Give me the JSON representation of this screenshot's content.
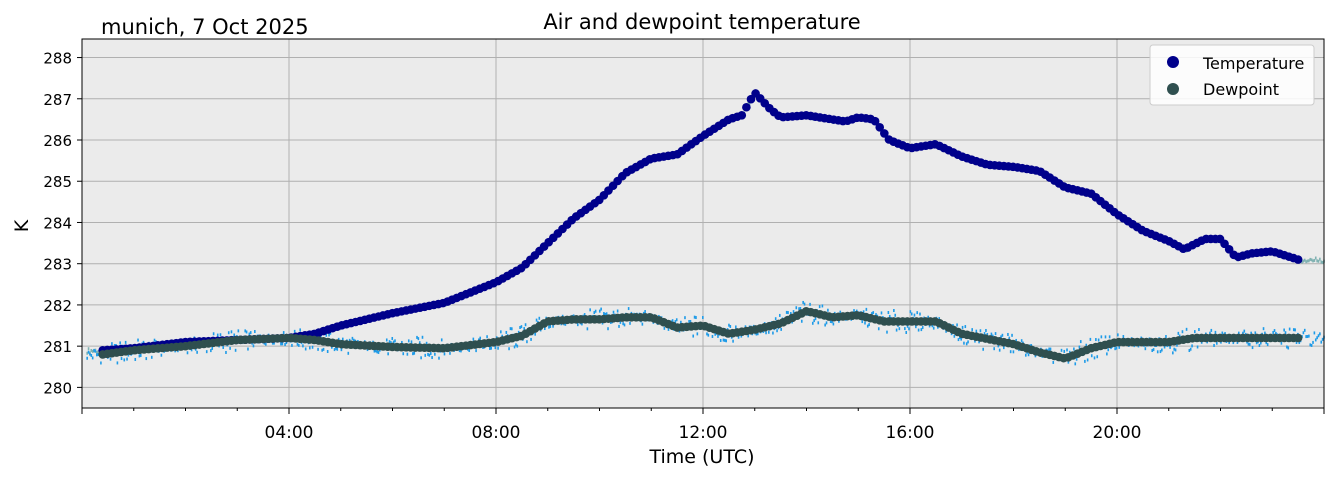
{
  "chart_data": {
    "type": "scatter",
    "title": "Air and dewpoint temperature",
    "subtitle": "munich, 7 Oct 2025",
    "xlabel": "Time (UTC)",
    "ylabel": "K",
    "xlim": [
      0,
      24
    ],
    "ylim": [
      279.5,
      288.45
    ],
    "xticks": [
      {
        "value": 4,
        "label": "04:00"
      },
      {
        "value": 8,
        "label": "08:00"
      },
      {
        "value": 12,
        "label": "12:00"
      },
      {
        "value": 16,
        "label": "16:00"
      },
      {
        "value": 20,
        "label": "20:00"
      }
    ],
    "yticks": [
      280,
      281,
      282,
      283,
      284,
      285,
      286,
      287,
      288
    ],
    "grid": true,
    "legend_position": "top-right",
    "colors": {
      "temperature": "#00008b",
      "dewpoint": "#2f4f4f",
      "temperature_raw": "#7fb1b1",
      "dewpoint_raw": "#1e9be8",
      "plot_bg": "#ebebeb",
      "grid": "#b0b0b0"
    },
    "series": [
      {
        "name": "Temperature",
        "x": [
          0.4,
          1.0,
          2.0,
          3.0,
          4.0,
          4.5,
          5.0,
          6.0,
          7.0,
          7.5,
          8.0,
          8.5,
          9.0,
          9.5,
          10.0,
          10.5,
          11.0,
          11.5,
          12.0,
          12.5,
          12.75,
          13.0,
          13.3,
          13.5,
          14.0,
          14.5,
          14.75,
          15.0,
          15.3,
          15.6,
          16.0,
          16.5,
          17.0,
          17.5,
          18.0,
          18.5,
          19.0,
          19.5,
          20.0,
          20.5,
          21.0,
          21.3,
          21.7,
          22.0,
          22.3,
          22.6,
          23.0,
          23.5
        ],
        "values": [
          280.9,
          280.95,
          281.1,
          281.15,
          281.2,
          281.3,
          281.5,
          281.8,
          282.05,
          282.3,
          282.55,
          282.9,
          283.5,
          284.1,
          284.55,
          285.2,
          285.55,
          285.65,
          286.1,
          286.5,
          286.6,
          287.15,
          286.75,
          286.55,
          286.6,
          286.5,
          286.45,
          286.55,
          286.5,
          286.0,
          285.8,
          285.9,
          285.6,
          285.4,
          285.35,
          285.25,
          284.85,
          284.7,
          284.2,
          283.8,
          283.55,
          283.35,
          283.6,
          283.6,
          283.15,
          283.25,
          283.3,
          283.1
        ]
      },
      {
        "name": "Dewpoint",
        "x": [
          0.4,
          1.0,
          2.0,
          3.0,
          4.0,
          4.5,
          5.0,
          6.0,
          7.0,
          8.0,
          8.5,
          9.0,
          9.5,
          10.0,
          10.5,
          11.0,
          11.5,
          12.0,
          12.5,
          13.0,
          13.5,
          14.0,
          14.5,
          15.0,
          15.5,
          16.0,
          16.5,
          17.0,
          18.0,
          18.5,
          19.0,
          19.5,
          20.0,
          20.5,
          21.0,
          21.5,
          22.0,
          23.0,
          23.5
        ],
        "values": [
          280.8,
          280.9,
          281.0,
          281.15,
          281.2,
          281.15,
          281.05,
          280.98,
          280.95,
          281.1,
          281.25,
          281.6,
          281.65,
          281.65,
          281.7,
          281.7,
          281.45,
          281.5,
          281.3,
          281.4,
          281.55,
          281.85,
          281.7,
          281.75,
          281.6,
          281.6,
          281.6,
          281.3,
          281.05,
          280.85,
          280.7,
          280.95,
          281.1,
          281.1,
          281.1,
          281.2,
          281.2,
          281.2,
          281.2
        ]
      }
    ]
  }
}
